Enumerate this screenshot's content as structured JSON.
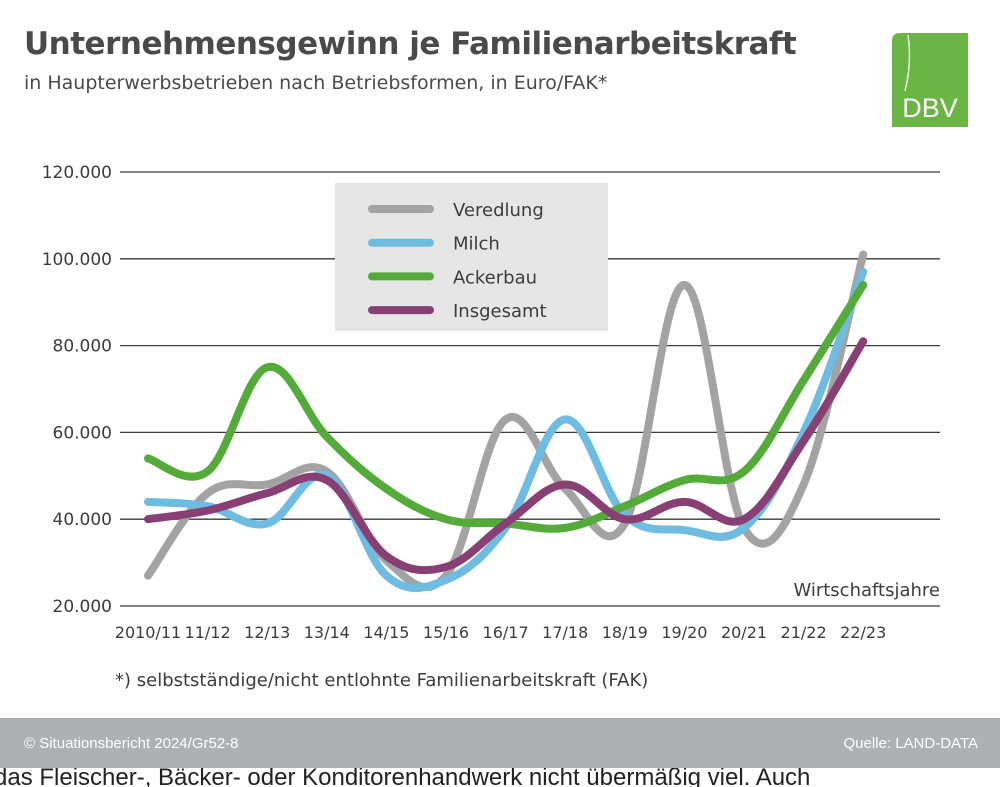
{
  "header": {
    "title": "Unternehmensgewinn je Familienarbeitskraft",
    "subtitle": "in Haupterwerbsbetrieben nach Betriebsformen, in Euro/FAK*",
    "logo_text": "DBV",
    "logo_color": "#6ab544"
  },
  "chart_data": {
    "type": "line",
    "title": "Unternehmensgewinn je Familienarbeitskraft",
    "subtitle": "in Haupterwerbsbetrieben nach Betriebsformen, in Euro/FAK*",
    "xlabel": "Wirtschaftsjahre",
    "ylabel": "",
    "categories": [
      "2010/11",
      "11/12",
      "12/13",
      "13/14",
      "14/15",
      "15/16",
      "16/17",
      "17/18",
      "18/19",
      "19/20",
      "20/21",
      "21/22",
      "22/23"
    ],
    "ylim": [
      20000,
      120000
    ],
    "yticks": [
      20000,
      40000,
      60000,
      80000,
      100000,
      120000
    ],
    "ytick_labels": [
      "20.000",
      "40.000",
      "60.000",
      "80.000",
      "100.000",
      "120.000"
    ],
    "grid": true,
    "legend_position": "top-center",
    "series": [
      {
        "name": "Veredlung",
        "color": "#a3a3a3",
        "values": [
          27000,
          46000,
          48000,
          51000,
          30500,
          27000,
          63000,
          47000,
          39000,
          94000,
          38000,
          48000,
          101000
        ]
      },
      {
        "name": "Milch",
        "color": "#6fbce2",
        "values": [
          44000,
          43000,
          39000,
          50000,
          27000,
          26000,
          38000,
          63000,
          41000,
          37500,
          38000,
          60000,
          97000
        ]
      },
      {
        "name": "Ackerbau",
        "color": "#55ab3a",
        "values": [
          54000,
          51000,
          75000,
          59000,
          47000,
          40000,
          39000,
          38000,
          43000,
          49000,
          51000,
          72000,
          94000
        ]
      },
      {
        "name": "Insgesamt",
        "color": "#883f74",
        "values": [
          40000,
          42000,
          46000,
          49000,
          31500,
          29000,
          39000,
          48000,
          40000,
          44000,
          40000,
          58000,
          81000
        ]
      }
    ]
  },
  "footnote": "*) selbstständige/nicht entlohnte Familienarbeitskraft (FAK)",
  "footer": {
    "copyright": "© Situationsbericht 2024/Gr52-8",
    "source": "Quelle: LAND-DATA"
  },
  "below_text": "das Fleischer-, Bäcker- oder Konditorenhandwerk nicht übermäßig viel. Auch"
}
